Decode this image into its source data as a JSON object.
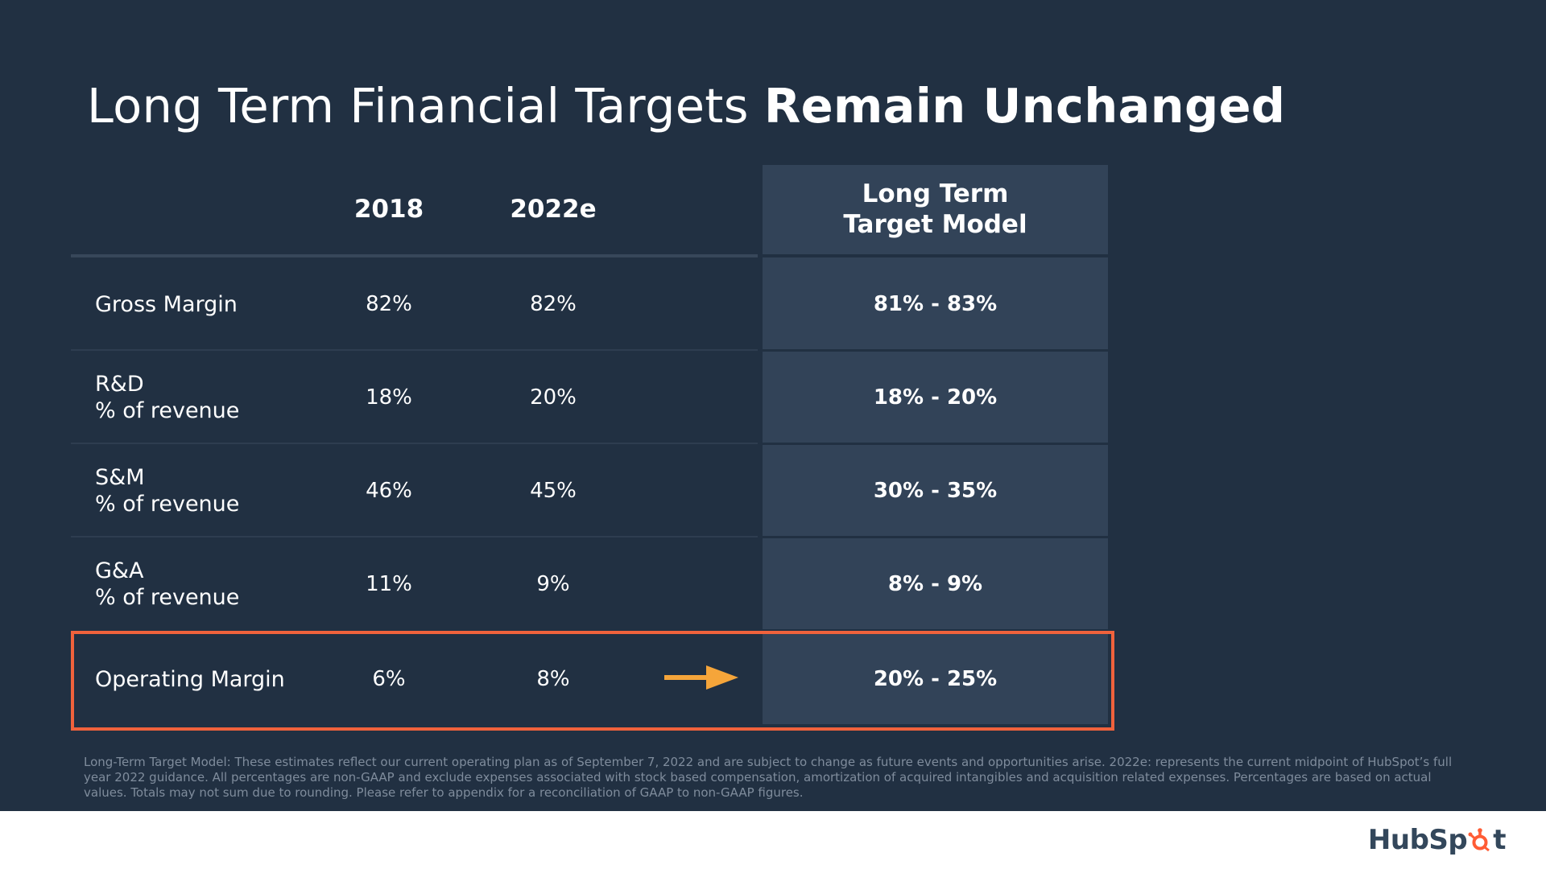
{
  "title": {
    "regular": "Long Term Financial Targets",
    "bold": "Remain Unchanged"
  },
  "table": {
    "columns": {
      "col_2018": "2018",
      "col_2022": "2022e",
      "long_term_line1": "Long Term",
      "long_term_line2": "Target Model"
    },
    "rows": [
      {
        "label_line1": "Gross Margin",
        "label_line2": "",
        "v2018": "82%",
        "v2022": "82%",
        "long_term": "81% - 83%"
      },
      {
        "label_line1": "R&D",
        "label_line2": "% of revenue",
        "v2018": "18%",
        "v2022": "20%",
        "long_term": "18% - 20%"
      },
      {
        "label_line1": "S&M",
        "label_line2": "% of revenue",
        "v2018": "46%",
        "v2022": "45%",
        "long_term": "30% - 35%"
      },
      {
        "label_line1": "G&A",
        "label_line2": "% of revenue",
        "v2018": "11%",
        "v2022": "9%",
        "long_term": "8% - 9%"
      },
      {
        "label_line1": "Operating Margin",
        "label_line2": "",
        "v2018": "6%",
        "v2022": "8%",
        "long_term": "20% - 25%"
      }
    ]
  },
  "footnote": "Long-Term Target Model: These estimates reflect our current operating plan as of September 7, 2022 and are subject to change as future events and opportunities arise. 2022e: represents the current midpoint of HubSpot’s full year 2022 guidance. All percentages are non-GAAP and exclude expenses associated with stock based compensation, amortization of acquired intangibles and acquisition related expenses. Percentages are based on actual values. Totals may not sum due to rounding. Please refer to appendix for a reconciliation of GAAP to non-GAAP figures.",
  "logo": {
    "part1": "HubSp",
    "part2": "t"
  },
  "colors": {
    "background": "#213042",
    "panel": "#324358",
    "highlight_border": "#f0623c",
    "arrow": "#f5a53a",
    "logo_text": "#33475b",
    "logo_sprocket": "#ff5c35"
  },
  "icons": {
    "arrow": "right-arrow-icon",
    "logo": "hubspot-sprocket-icon"
  }
}
